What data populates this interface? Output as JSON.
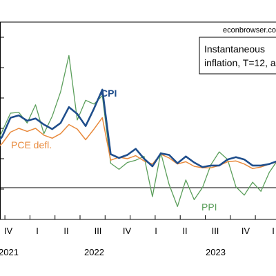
{
  "source_note": "econbrowser.com",
  "legend_box": {
    "line1": "Instantaneous",
    "line2": "inflation, T=12, a"
  },
  "chart_data": {
    "type": "line",
    "x_tick_labels": [
      "IV",
      "I",
      "II",
      "III",
      "IV",
      "I",
      "II",
      "III",
      "IV",
      "I"
    ],
    "year_labels": [
      "2021",
      "2022",
      "2023"
    ],
    "ylim": [
      -4,
      22
    ],
    "grid": false,
    "series": [
      {
        "name": "CPI",
        "color": "#1f4e8c",
        "values": [
          5.6,
          6.9,
          9.4,
          9.7,
          9.0,
          9.3,
          8.5,
          7.9,
          8.7,
          10.8,
          9.9,
          8.3,
          10.6,
          13.1,
          4.6,
          4.1,
          4.5,
          5.3,
          4.0,
          3.0,
          4.7,
          4.5,
          3.4,
          4.3,
          3.5,
          2.9,
          3.1,
          3.1,
          3.9,
          4.2,
          3.9,
          3.1,
          3.1,
          3.3,
          3.7
        ]
      },
      {
        "name": "PCE defl.",
        "color": "#e8893b",
        "values": [
          5.0,
          6.0,
          7.5,
          8.0,
          7.6,
          8.0,
          7.1,
          6.7,
          7.3,
          8.5,
          7.9,
          6.5,
          7.9,
          9.4,
          3.8,
          4.2,
          4.0,
          4.4,
          3.7,
          3.3,
          4.6,
          4.1,
          3.3,
          3.6,
          3.0,
          2.8,
          2.8,
          3.1,
          3.6,
          3.7,
          3.3,
          2.7,
          2.9,
          3.3,
          3.6
        ]
      },
      {
        "name": "PPI",
        "color": "#5a9e5a",
        "values": [
          5.2,
          7.6,
          10.0,
          10.1,
          8.7,
          11.1,
          7.3,
          9.6,
          12.8,
          17.6,
          9.1,
          11.7,
          11.2,
          12.3,
          3.4,
          2.6,
          3.5,
          3.8,
          4.3,
          -1.0,
          4.8,
          0.6,
          -2.3,
          1.2,
          -1.4,
          0.2,
          3.2,
          4.9,
          3.9,
          0.3,
          -0.8,
          0.9,
          -0.3,
          2.2,
          3.8
        ]
      }
    ],
    "annotations": [
      "CPI",
      "PCE defl.",
      "PPI"
    ]
  }
}
